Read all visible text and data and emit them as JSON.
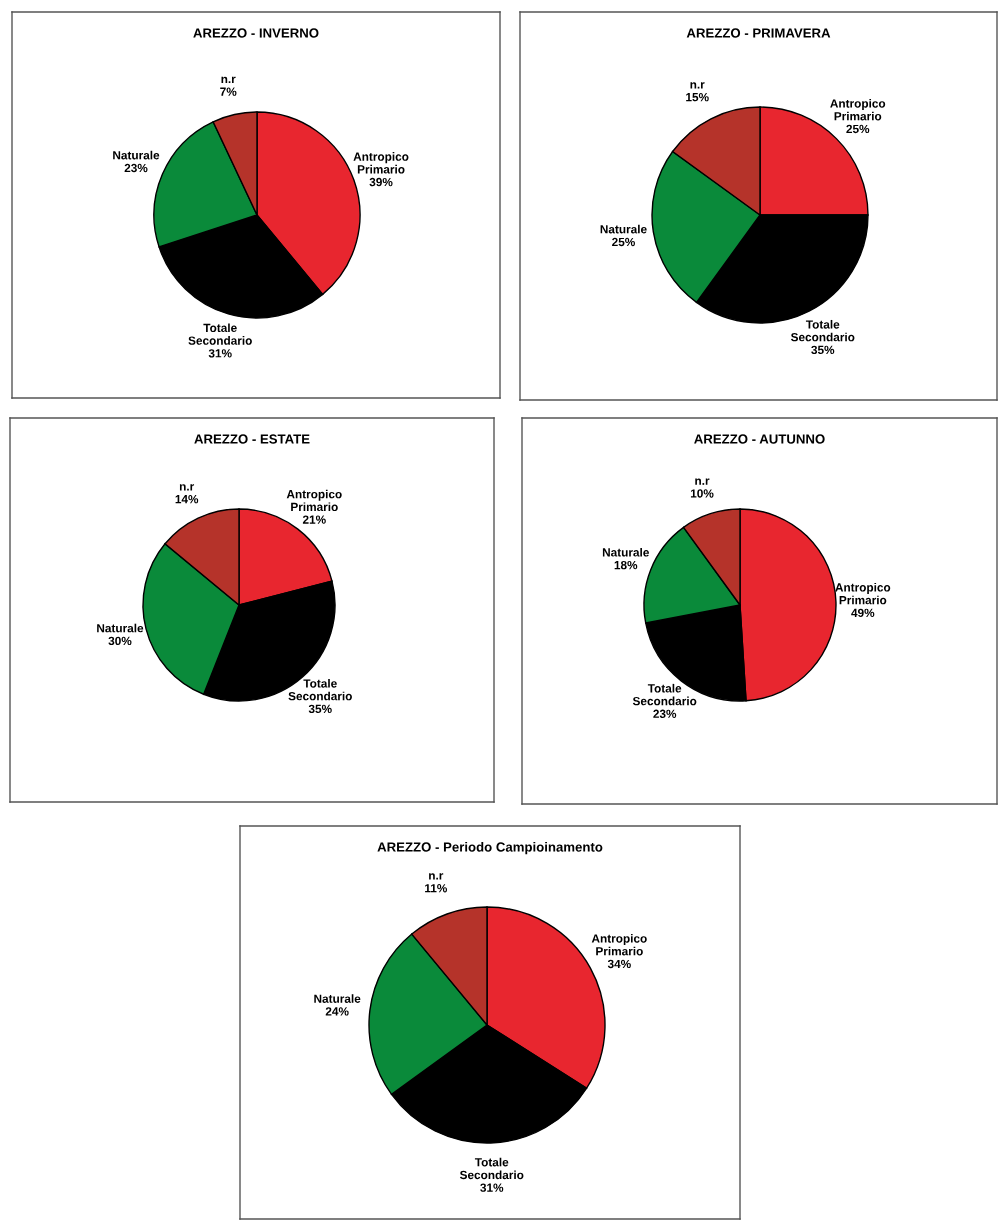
{
  "chart_data": [
    {
      "type": "pie",
      "title": "AREZZO - INVERNO",
      "categories": [
        "Antropico\nPrimario",
        "Totale\nSecondario",
        "Naturale",
        "n.r"
      ],
      "values": [
        39,
        31,
        23,
        7
      ],
      "value_labels": [
        "39%",
        "31%",
        "23%",
        "7%"
      ],
      "colors": [
        "#e8262f",
        "#000000",
        "#0a8a3a",
        "#b5332a"
      ]
    },
    {
      "type": "pie",
      "title": "AREZZO - PRIMAVERA",
      "categories": [
        "Antropico\nPrimario",
        "Totale\nSecondario",
        "Naturale",
        "n.r"
      ],
      "values": [
        25,
        35,
        25,
        15
      ],
      "value_labels": [
        "25%",
        "35%",
        "25%",
        "15%"
      ],
      "colors": [
        "#e8262f",
        "#000000",
        "#0a8a3a",
        "#b5332a"
      ]
    },
    {
      "type": "pie",
      "title": "AREZZO - ESTATE",
      "categories": [
        "Antropico\nPrimario",
        "Totale\nSecondario",
        "Naturale",
        "n.r"
      ],
      "values": [
        21,
        35,
        30,
        14
      ],
      "value_labels": [
        "21%",
        "35%",
        "30%",
        "14%"
      ],
      "colors": [
        "#e8262f",
        "#000000",
        "#0a8a3a",
        "#b5332a"
      ]
    },
    {
      "type": "pie",
      "title": "AREZZO - AUTUNNO",
      "categories": [
        "Antropico\nPrimario",
        "Totale\nSecondario",
        "Naturale",
        "n.r"
      ],
      "values": [
        49,
        23,
        18,
        10
      ],
      "value_labels": [
        "49%",
        "23%",
        "18%",
        "10%"
      ],
      "colors": [
        "#e8262f",
        "#000000",
        "#0a8a3a",
        "#b5332a"
      ]
    },
    {
      "type": "pie",
      "title": "AREZZO - Periodo Campioinamento",
      "categories": [
        "Antropico\nPrimario",
        "Totale\nSecondario",
        "Naturale",
        "n.r"
      ],
      "values": [
        34,
        31,
        24,
        11
      ],
      "value_labels": [
        "34%",
        "31%",
        "24%",
        "11%"
      ],
      "colors": [
        "#e8262f",
        "#000000",
        "#0a8a3a",
        "#b5332a"
      ]
    }
  ]
}
